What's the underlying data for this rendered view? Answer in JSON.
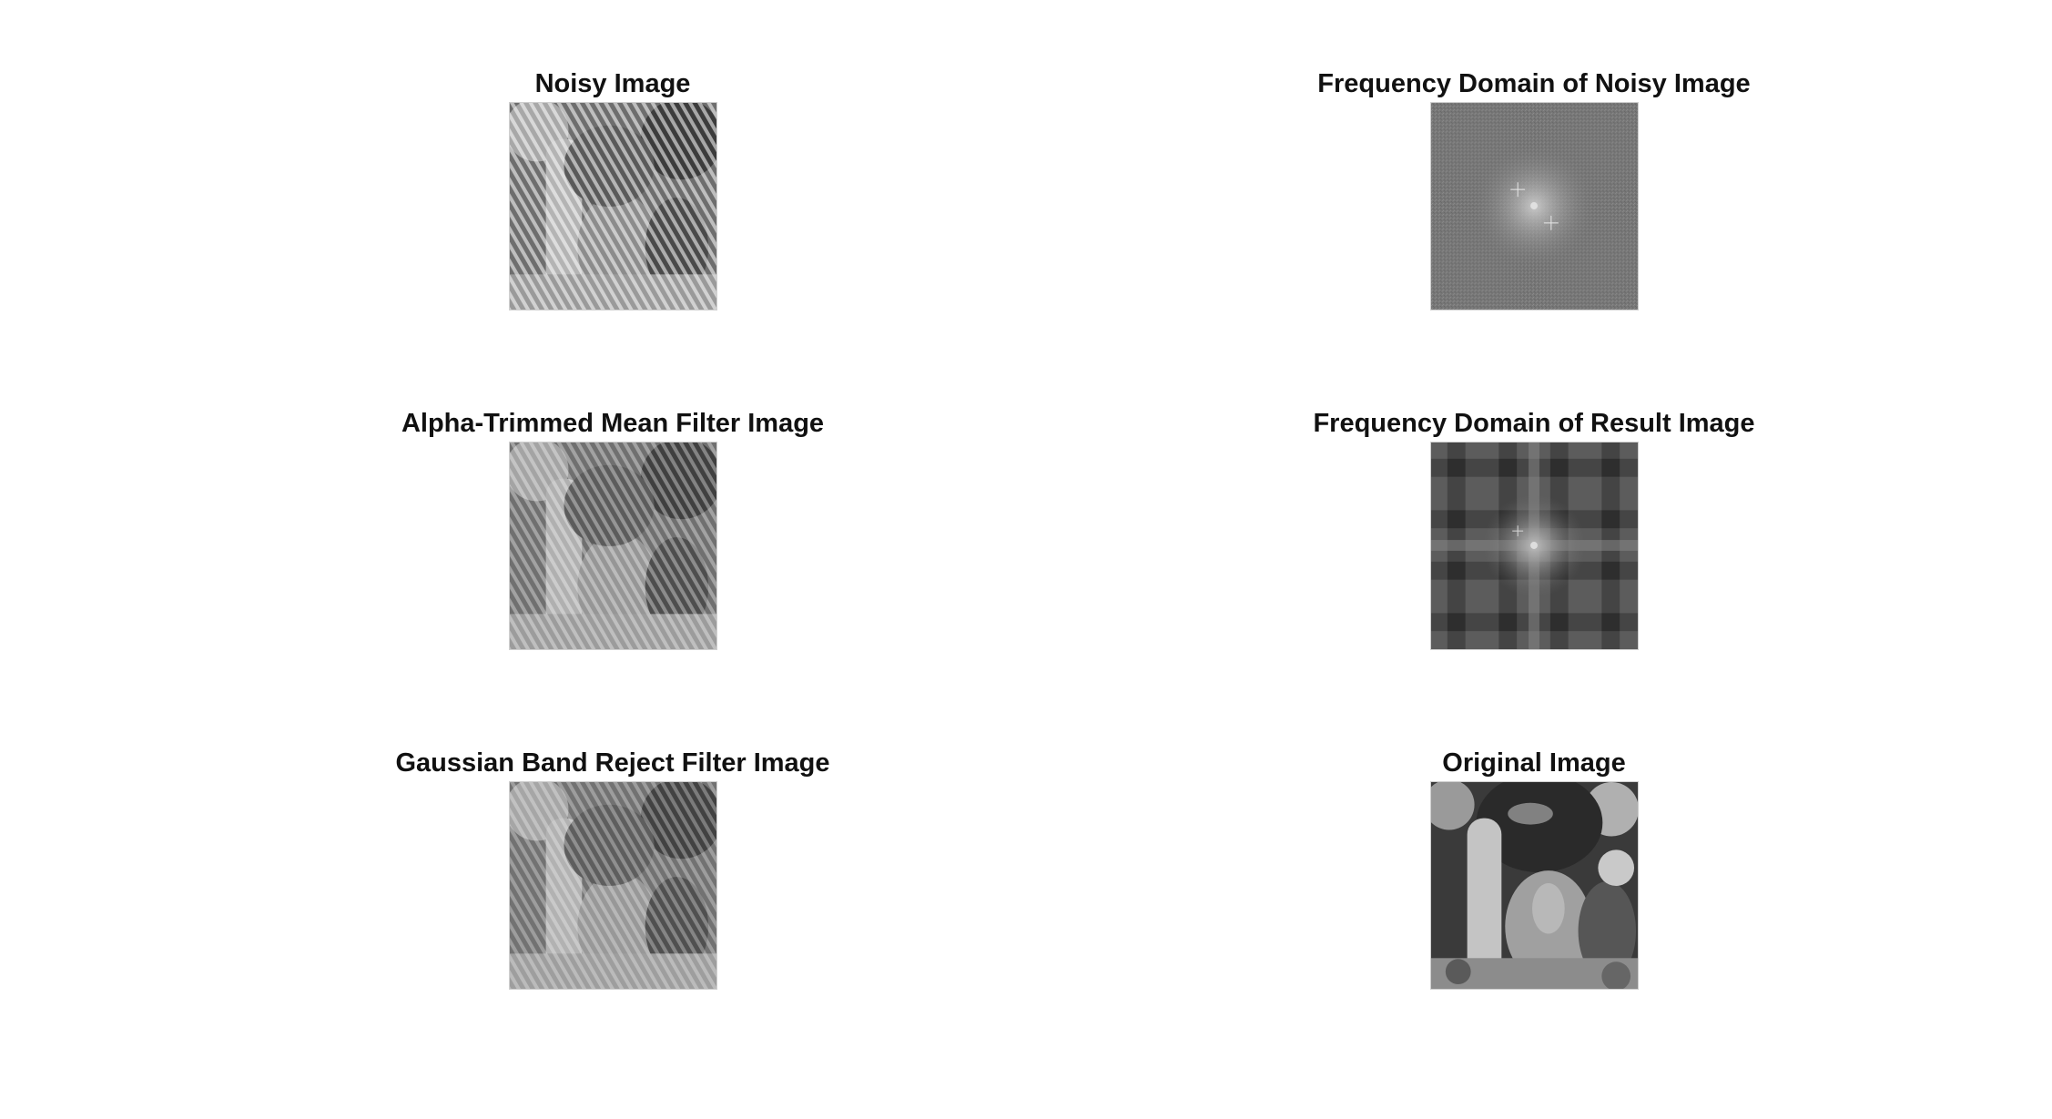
{
  "figure": {
    "panels": [
      {
        "id": "noisy",
        "title": "Noisy Image",
        "image_kind": "pepper-noisy"
      },
      {
        "id": "fft-noisy",
        "title": "Frequency Domain of Noisy Image",
        "image_kind": "spectrum-noisy"
      },
      {
        "id": "alpha",
        "title": "Alpha-Trimmed Mean Filter Image",
        "image_kind": "pepper-alpha-trimmed"
      },
      {
        "id": "fft-result",
        "title": "Frequency Domain of Result Image",
        "image_kind": "spectrum-result"
      },
      {
        "id": "gaussian",
        "title": "Gaussian Band Reject Filter Image",
        "image_kind": "pepper-gaussian-band-reject"
      },
      {
        "id": "original",
        "title": "Original Image",
        "image_kind": "pepper-original"
      }
    ]
  }
}
